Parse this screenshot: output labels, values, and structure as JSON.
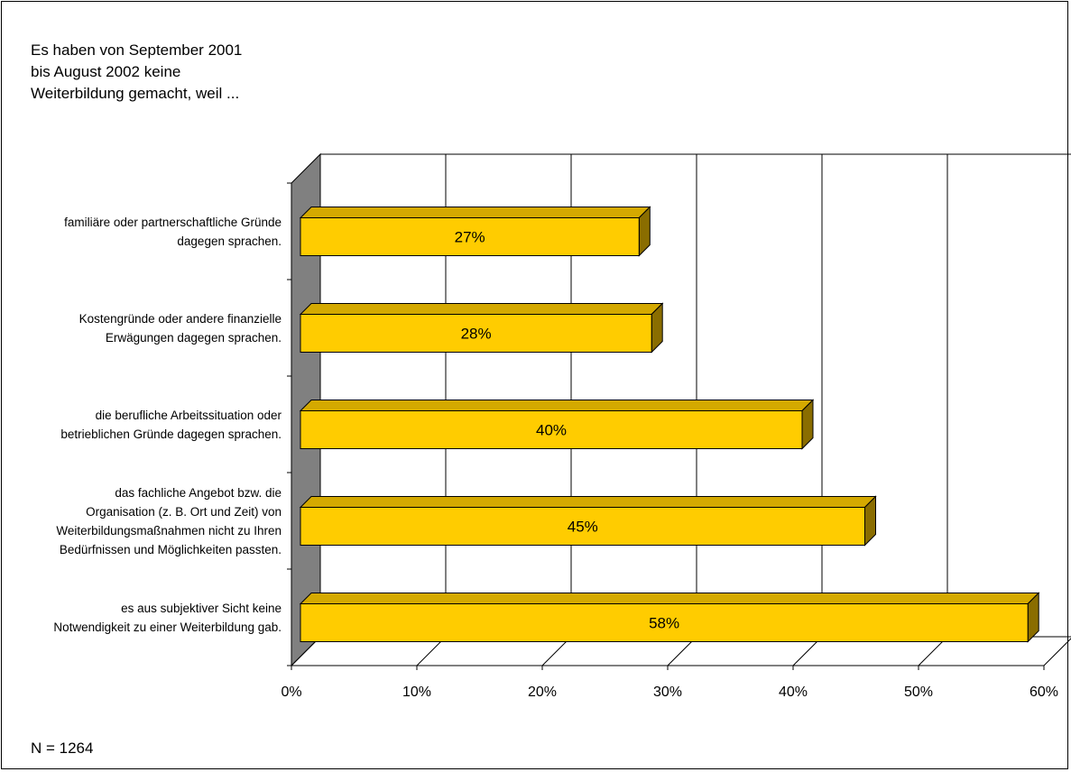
{
  "title_lines": [
    "Es haben von September 2001",
    "bis August 2002 keine",
    "Weiterbildung gemacht, weil ..."
  ],
  "footnote": "N = 1264",
  "colors": {
    "bar_front": "#ffcc00",
    "bar_top": "#d4a900",
    "bar_side": "#8a6d00",
    "wall_side": "#808080"
  },
  "chart_data": {
    "type": "bar",
    "orientation": "horizontal",
    "three_d": true,
    "categories": [
      [
        "familiäre oder partnerschaftliche Gründe",
        "dagegen sprachen."
      ],
      [
        "Kostengründe oder andere finanzielle",
        "Erwägungen dagegen sprachen."
      ],
      [
        "die berufliche Arbeitssituation oder",
        "betrieblichen Gründe dagegen sprachen."
      ],
      [
        "das fachliche Angebot bzw. die",
        "Organisation (z. B. Ort und Zeit) von",
        "Weiterbildungsmaßnahmen nicht zu Ihren",
        "Bedürfnissen und Möglichkeiten passten."
      ],
      [
        "es aus subjektiver Sicht keine",
        "Notwendigkeit zu einer Weiterbildung gab."
      ]
    ],
    "values": [
      27,
      28,
      40,
      45,
      58
    ],
    "value_labels": [
      "27%",
      "28%",
      "40%",
      "45%",
      "58%"
    ],
    "xlim": [
      0,
      60
    ],
    "x_ticks": [
      0,
      10,
      20,
      30,
      40,
      50,
      60
    ],
    "x_tick_labels": [
      "0%",
      "10%",
      "20%",
      "30%",
      "40%",
      "50%",
      "60%"
    ],
    "grid": true,
    "legend": "none"
  }
}
